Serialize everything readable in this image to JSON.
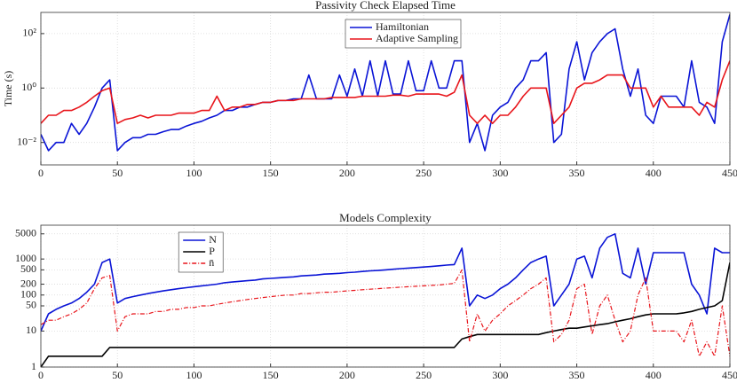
{
  "chart_data": [
    {
      "type": "line",
      "title": "Passivity Check Elapsed Time",
      "ylabel": "Time (s)",
      "x": [
        0,
        5,
        10,
        15,
        20,
        25,
        30,
        35,
        40,
        45,
        50,
        55,
        60,
        65,
        70,
        75,
        80,
        85,
        90,
        95,
        100,
        105,
        110,
        115,
        120,
        125,
        130,
        135,
        140,
        145,
        150,
        155,
        160,
        165,
        170,
        175,
        180,
        185,
        190,
        195,
        200,
        205,
        210,
        215,
        220,
        225,
        230,
        235,
        240,
        245,
        250,
        255,
        260,
        265,
        270,
        275,
        280,
        285,
        290,
        295,
        300,
        305,
        310,
        315,
        320,
        325,
        330,
        335,
        340,
        345,
        350,
        355,
        360,
        365,
        370,
        375,
        380,
        385,
        390,
        395,
        400,
        405,
        410,
        415,
        420,
        425,
        430,
        435,
        440,
        445,
        450
      ],
      "series": [
        {
          "name": "Hamiltonian",
          "color": "#0a14d6",
          "values": [
            0.02,
            0.005,
            0.01,
            0.01,
            0.05,
            0.02,
            0.05,
            0.2,
            1,
            2,
            0.005,
            0.01,
            0.015,
            0.015,
            0.02,
            0.02,
            0.025,
            0.03,
            0.03,
            0.04,
            0.05,
            0.06,
            0.08,
            0.1,
            0.15,
            0.15,
            0.2,
            0.2,
            0.25,
            0.3,
            0.3,
            0.35,
            0.35,
            0.4,
            0.4,
            3,
            0.4,
            0.4,
            0.4,
            3,
            0.5,
            5,
            0.5,
            10,
            0.5,
            10,
            0.6,
            0.6,
            10,
            0.8,
            0.8,
            10,
            1,
            1,
            10,
            10,
            0.01,
            0.05,
            0.005,
            0.1,
            0.2,
            0.3,
            1,
            2,
            10,
            10,
            20,
            0.01,
            0.02,
            5,
            50,
            2,
            20,
            50,
            100,
            150,
            5,
            0.5,
            5,
            0.1,
            0.05,
            0.5,
            0.5,
            0.5,
            0.2,
            10,
            0.3,
            0.2,
            0.05,
            50,
            500
          ]
        },
        {
          "name": "Adaptive Sampling",
          "color": "#e8151b",
          "values": [
            0.05,
            0.1,
            0.1,
            0.15,
            0.15,
            0.2,
            0.3,
            0.5,
            0.8,
            1,
            0.05,
            0.07,
            0.08,
            0.1,
            0.08,
            0.1,
            0.1,
            0.1,
            0.12,
            0.12,
            0.12,
            0.15,
            0.15,
            0.5,
            0.15,
            0.2,
            0.2,
            0.25,
            0.25,
            0.3,
            0.3,
            0.35,
            0.35,
            0.35,
            0.4,
            0.4,
            0.4,
            0.4,
            0.45,
            0.45,
            0.45,
            0.45,
            0.5,
            0.5,
            0.5,
            0.5,
            0.55,
            0.55,
            0.5,
            0.6,
            0.6,
            0.6,
            0.6,
            0.5,
            0.7,
            3,
            0.1,
            0.05,
            0.1,
            0.05,
            0.1,
            0.1,
            0.2,
            0.5,
            1,
            1,
            1,
            0.05,
            0.1,
            0.2,
            1,
            1.5,
            1.5,
            2,
            3,
            3,
            3,
            1,
            1,
            1,
            0.2,
            0.5,
            0.2,
            0.2,
            0.2,
            0.2,
            0.1,
            0.3,
            0.2,
            2,
            10
          ]
        }
      ],
      "xlim": [
        0,
        450
      ],
      "xticks": [
        0,
        50,
        100,
        150,
        200,
        250,
        300,
        350,
        400,
        450
      ],
      "ylim": [
        0.0015,
        600
      ],
      "log_y": true,
      "yticks": [
        {
          "value": 0.01,
          "label": "10⁻²"
        },
        {
          "value": 1,
          "label": "10⁰"
        },
        {
          "value": 100,
          "label": "10²"
        }
      ],
      "grid": true,
      "legend": "upper center"
    },
    {
      "type": "line",
      "title": "Models Complexity",
      "x": [
        0,
        5,
        10,
        15,
        20,
        25,
        30,
        35,
        40,
        45,
        50,
        55,
        60,
        65,
        70,
        75,
        80,
        85,
        90,
        95,
        100,
        105,
        110,
        115,
        120,
        125,
        130,
        135,
        140,
        145,
        150,
        155,
        160,
        165,
        170,
        175,
        180,
        185,
        190,
        195,
        200,
        205,
        210,
        215,
        220,
        225,
        230,
        235,
        240,
        245,
        250,
        255,
        260,
        265,
        270,
        275,
        280,
        285,
        290,
        295,
        300,
        305,
        310,
        315,
        320,
        325,
        330,
        335,
        340,
        345,
        350,
        355,
        360,
        365,
        370,
        375,
        380,
        385,
        390,
        395,
        400,
        405,
        410,
        415,
        420,
        425,
        430,
        435,
        440,
        445,
        450
      ],
      "series": [
        {
          "name": "N",
          "color": "#0a14d6",
          "style": "solid",
          "values": [
            10,
            30,
            40,
            50,
            60,
            80,
            120,
            200,
            800,
            1000,
            60,
            80,
            90,
            100,
            110,
            120,
            130,
            140,
            150,
            160,
            170,
            180,
            190,
            200,
            220,
            230,
            240,
            250,
            260,
            280,
            290,
            300,
            310,
            320,
            340,
            350,
            360,
            380,
            390,
            400,
            420,
            430,
            450,
            470,
            480,
            500,
            520,
            540,
            560,
            580,
            600,
            620,
            650,
            680,
            700,
            2000,
            50,
            100,
            80,
            100,
            150,
            200,
            300,
            500,
            800,
            1000,
            1200,
            50,
            100,
            200,
            1000,
            1200,
            300,
            2000,
            4000,
            5000,
            400,
            300,
            2000,
            200,
            1500,
            1500,
            1500,
            1500,
            1500,
            200,
            100,
            30,
            2000,
            1500,
            1500
          ]
        },
        {
          "name": "P",
          "color": "#000000",
          "style": "solid",
          "values": [
            1,
            2,
            2,
            2,
            2,
            2,
            2,
            2,
            2,
            3.5,
            3.5,
            3.5,
            3.5,
            3.5,
            3.5,
            3.5,
            3.5,
            3.5,
            3.5,
            3.5,
            3.5,
            3.5,
            3.5,
            3.5,
            3.5,
            3.5,
            3.5,
            3.5,
            3.5,
            3.5,
            3.5,
            3.5,
            3.5,
            3.5,
            3.5,
            3.5,
            3.5,
            3.5,
            3.5,
            3.5,
            3.5,
            3.5,
            3.5,
            3.5,
            3.5,
            3.5,
            3.5,
            3.5,
            3.5,
            3.5,
            3.5,
            3.5,
            3.5,
            3.5,
            3.5,
            6,
            7,
            8,
            8,
            8,
            8,
            8,
            8,
            8,
            8,
            8,
            9,
            10,
            11,
            12,
            12,
            13,
            14,
            15,
            16,
            18,
            20,
            22,
            25,
            28,
            30,
            30,
            30,
            30,
            32,
            35,
            40,
            45,
            50,
            70,
            800
          ]
        },
        {
          "name": "n̄",
          "color": "#e8151b",
          "style": "dashdot",
          "values": [
            15,
            20,
            20,
            25,
            30,
            40,
            60,
            150,
            300,
            350,
            10,
            25,
            30,
            30,
            30,
            35,
            35,
            40,
            40,
            45,
            45,
            50,
            50,
            55,
            60,
            65,
            70,
            75,
            80,
            85,
            90,
            95,
            100,
            100,
            110,
            110,
            115,
            120,
            120,
            125,
            130,
            135,
            140,
            145,
            150,
            155,
            160,
            165,
            170,
            175,
            180,
            185,
            190,
            200,
            210,
            500,
            5,
            30,
            10,
            20,
            30,
            50,
            70,
            100,
            150,
            200,
            300,
            5,
            8,
            20,
            150,
            200,
            8,
            50,
            100,
            20,
            5,
            10,
            100,
            300,
            10,
            10,
            10,
            10,
            5,
            20,
            2,
            5,
            2,
            50,
            2
          ]
        }
      ],
      "xlim": [
        0,
        450
      ],
      "xticks": [
        0,
        50,
        100,
        150,
        200,
        250,
        300,
        350,
        400,
        450
      ],
      "ylim": [
        1,
        8700
      ],
      "log_y": true,
      "yticks": [
        1,
        10,
        50,
        100,
        200,
        500,
        1000,
        5000
      ],
      "grid": true,
      "legend": "upper left"
    }
  ]
}
